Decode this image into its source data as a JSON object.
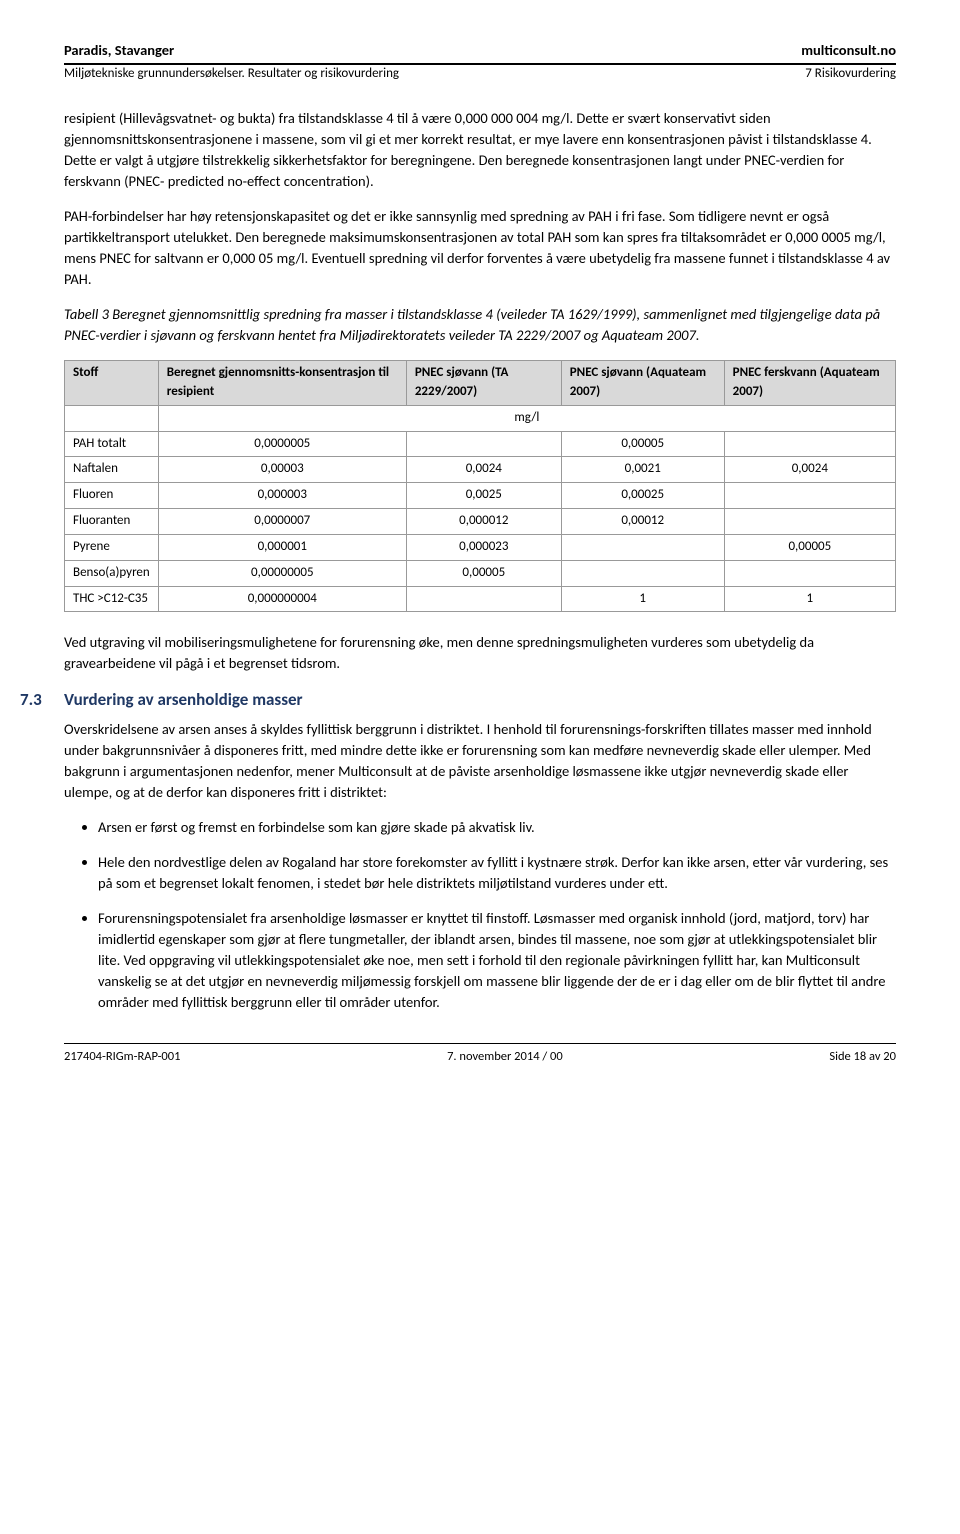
{
  "header": {
    "left_title": "Paradis, Stavanger",
    "right_title": "multiconsult.no",
    "left_sub": "Miljøtekniske grunnundersøkelser. Resultater og risikovurdering",
    "right_sub": "7 Risikovurdering"
  },
  "body": {
    "p1": "resipient (Hillevågsvatnet- og bukta) fra tilstandsklasse 4 til å være 0,000 000 004 mg/l. Dette er svært konservativt siden gjennomsnittskonsentrasjonene i massene, som vil gi et mer korrekt resultat, er mye lavere enn konsentrasjonen påvist i tilstandsklasse 4. Dette er valgt å utgjøre tilstrekkelig sikkerhetsfaktor for beregningene. Den beregnede konsentrasjonen langt under PNEC-verdien for ferskvann (PNEC- predicted no-effect concentration).",
    "p2": "PAH-forbindelser har høy retensjonskapasitet og det er ikke sannsynlig med spredning av PAH i fri fase. Som tidligere nevnt er også partikkeltransport utelukket. Den beregnede maksimumskonsentrasjonen av total PAH som kan spres fra tiltaksområdet er 0,000 0005 mg/l, mens PNEC for saltvann er 0,000 05 mg/l. Eventuell spredning vil derfor forventes å være ubetydelig fra massene funnet i tilstandsklasse 4 av PAH.",
    "p3_italic": "Tabell 3 Beregnet gjennomsnittlig spredning fra masser i tilstandsklasse 4 (veileder TA 1629/1999), sammenlignet med tilgjengelige data på PNEC-verdier i sjøvann og ferskvann hentet fra Miljødirektoratets veileder TA 2229/2007 og Aquateam 2007.",
    "p4": "Ved utgraving vil mobiliseringsmulighetene for forurensning øke, men denne spredningsmuligheten vurderes som ubetydelig da gravearbeidene vil pågå i et begrenset tidsrom.",
    "p5": "Overskridelsene av arsen anses å skyldes fyllittisk berggrunn i distriktet. I henhold til forurensnings-forskriften tillates masser med innhold under bakgrunnsnivåer å disponeres fritt, med mindre dette ikke er forurensning som kan medføre nevneverdig skade eller ulemper. Med bakgrunn i argumentasjonen nedenfor, mener Multiconsult at de påviste arsenholdige løsmassene ikke utgjør nevneverdig skade eller ulempe, og at de derfor kan disponeres fritt i distriktet:",
    "b1": "Arsen er først og fremst en forbindelse som kan gjøre skade på akvatisk liv.",
    "b2": "Hele den nordvestlige delen av Rogaland har store forekomster av fyllitt i kystnære strøk. Derfor kan ikke arsen, etter vår vurdering, ses på som et begrenset lokalt fenomen, i stedet bør hele distriktets miljøtilstand vurderes under ett.",
    "b3": "Forurensningspotensialet fra arsenholdige løsmasser er knyttet til finstoff. Løsmasser med organisk innhold (jord, matjord, torv) har imidlertid egenskaper som gjør at flere tungmetaller, der iblandt arsen, bindes til massene, noe som gjør at utlekkingspotensialet blir lite. Ved oppgraving vil utlekkingspotensialet øke noe, men sett i forhold til den regionale påvirkningen fyllitt har, kan Multiconsult vanskelig se at det utgjør en nevneverdig miljømessig forskjell om massene blir liggende der de er i dag eller om de blir flyttet til andre områder med fyllittisk berggrunn eller til områder utenfor."
  },
  "section": {
    "num": "7.3",
    "title": "Vurdering av arsenholdige masser"
  },
  "table": {
    "headers": {
      "c1": "Stoff",
      "c2": "Beregnet gjennomsnitts-konsentrasjon til resipient",
      "c3": "PNEC sjøvann (TA 2229/2007)",
      "c4": "PNEC sjøvann (Aquateam 2007)",
      "c5": "PNEC ferskvann (Aquateam 2007)"
    },
    "unit": "mg/l",
    "rows": [
      {
        "c1": "PAH totalt",
        "c2": "0,0000005",
        "c3": "",
        "c4": "0,00005",
        "c5": ""
      },
      {
        "c1": "Naftalen",
        "c2": "0,00003",
        "c3": "0,0024",
        "c4": "0,0021",
        "c5": "0,0024"
      },
      {
        "c1": "Fluoren",
        "c2": "0,000003",
        "c3": "0,0025",
        "c4": "0,00025",
        "c5": ""
      },
      {
        "c1": "Fluoranten",
        "c2": "0,0000007",
        "c3": "0,000012",
        "c4": "0,00012",
        "c5": ""
      },
      {
        "c1": "Pyrene",
        "c2": "0,000001",
        "c3": "0,000023",
        "c4": "",
        "c5": "0,00005"
      },
      {
        "c1": "Benso(a)pyren",
        "c2": "0,00000005",
        "c3": "0,00005",
        "c4": "",
        "c5": ""
      },
      {
        "c1": "THC >C12-C35",
        "c2": "0,000000004",
        "c3": "",
        "c4": "1",
        "c5": "1"
      }
    ]
  },
  "footer": {
    "left": "217404-RIGm-RAP-001",
    "center": "7. november 2014 / 00",
    "right": "Side 18 av 20"
  }
}
